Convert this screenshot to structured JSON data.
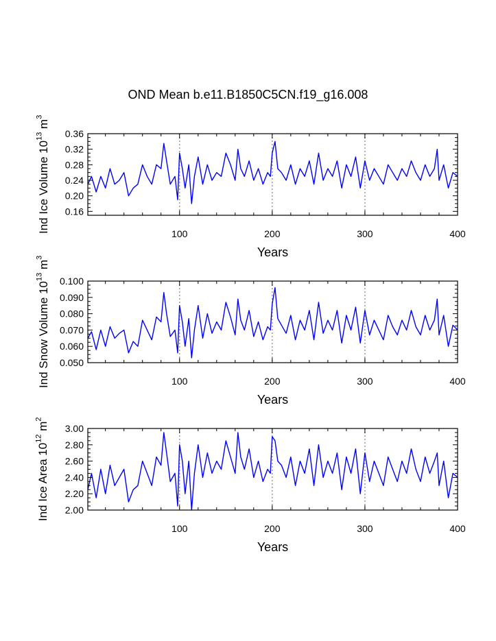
{
  "title": "OND Mean b.e11.B1850C5CN.f19_g16.008",
  "colors": {
    "series": "#0000ff",
    "axes": "#000000",
    "refline": "#999999"
  },
  "chart_data": [
    {
      "type": "line",
      "ylabel_main": "Ind Ice Volume 10",
      "ylabel_exp": "13",
      "ylabel_unit": " m",
      "ylabel_unit_exp": "3",
      "xlabel": "Years",
      "xlim": [
        1,
        400
      ],
      "ylim": [
        0.15,
        0.36
      ],
      "yticks": [
        0.16,
        0.2,
        0.24,
        0.28,
        0.32,
        0.36
      ],
      "ytick_labels": [
        "0.16",
        "0.20",
        "0.24",
        "0.28",
        "0.32",
        "0.36"
      ],
      "xticks": [
        100,
        200,
        300,
        400
      ],
      "xtick_labels": [
        "100",
        "200",
        "300",
        "400"
      ],
      "reference_lines_x": [
        100,
        200,
        300
      ],
      "series": [
        {
          "name": "Ind Ice Volume",
          "x": [
            1,
            5,
            10,
            15,
            20,
            25,
            30,
            35,
            40,
            45,
            50,
            55,
            60,
            65,
            70,
            75,
            80,
            83,
            86,
            90,
            95,
            98,
            100,
            103,
            106,
            110,
            113,
            116,
            120,
            125,
            130,
            135,
            140,
            145,
            150,
            155,
            160,
            163,
            166,
            170,
            175,
            180,
            185,
            190,
            195,
            198,
            200,
            203,
            206,
            210,
            215,
            220,
            225,
            230,
            235,
            240,
            245,
            250,
            255,
            260,
            265,
            270,
            275,
            280,
            285,
            290,
            295,
            300,
            305,
            310,
            315,
            320,
            325,
            330,
            335,
            340,
            345,
            350,
            355,
            360,
            365,
            370,
            375,
            378,
            380,
            385,
            390,
            395,
            400
          ],
          "y": [
            0.23,
            0.25,
            0.21,
            0.25,
            0.22,
            0.27,
            0.23,
            0.24,
            0.26,
            0.2,
            0.22,
            0.23,
            0.28,
            0.25,
            0.23,
            0.28,
            0.27,
            0.335,
            0.29,
            0.23,
            0.25,
            0.19,
            0.31,
            0.27,
            0.22,
            0.28,
            0.18,
            0.25,
            0.3,
            0.23,
            0.28,
            0.24,
            0.26,
            0.25,
            0.31,
            0.28,
            0.24,
            0.32,
            0.27,
            0.25,
            0.29,
            0.24,
            0.27,
            0.23,
            0.26,
            0.25,
            0.31,
            0.34,
            0.27,
            0.26,
            0.24,
            0.28,
            0.23,
            0.27,
            0.25,
            0.29,
            0.23,
            0.31,
            0.24,
            0.27,
            0.25,
            0.29,
            0.22,
            0.28,
            0.25,
            0.3,
            0.22,
            0.29,
            0.24,
            0.27,
            0.25,
            0.23,
            0.28,
            0.26,
            0.24,
            0.27,
            0.25,
            0.29,
            0.26,
            0.24,
            0.28,
            0.25,
            0.27,
            0.32,
            0.24,
            0.28,
            0.22,
            0.26,
            0.25
          ]
        }
      ]
    },
    {
      "type": "line",
      "ylabel_main": "Ind Snow Volume 10",
      "ylabel_exp": "13",
      "ylabel_unit": " m",
      "ylabel_unit_exp": "3",
      "xlabel": "Years",
      "xlim": [
        1,
        400
      ],
      "ylim": [
        0.05,
        0.1
      ],
      "yticks": [
        0.05,
        0.06,
        0.07,
        0.08,
        0.09,
        0.1
      ],
      "ytick_labels": [
        "0.050",
        "0.060",
        "0.070",
        "0.080",
        "0.090",
        "0.100"
      ],
      "xticks": [
        100,
        200,
        300,
        400
      ],
      "xtick_labels": [
        "100",
        "200",
        "300",
        "400"
      ],
      "reference_lines_x": [
        100,
        200,
        300
      ],
      "series": [
        {
          "name": "Ind Snow Volume",
          "x": [
            1,
            5,
            10,
            15,
            20,
            25,
            30,
            35,
            40,
            45,
            50,
            55,
            60,
            65,
            70,
            75,
            80,
            83,
            86,
            90,
            95,
            98,
            100,
            103,
            106,
            110,
            113,
            116,
            120,
            125,
            130,
            135,
            140,
            145,
            150,
            155,
            160,
            163,
            166,
            170,
            175,
            180,
            185,
            190,
            195,
            198,
            200,
            203,
            206,
            210,
            215,
            220,
            225,
            230,
            235,
            240,
            245,
            250,
            255,
            260,
            265,
            270,
            275,
            280,
            285,
            290,
            295,
            300,
            305,
            310,
            315,
            320,
            325,
            330,
            335,
            340,
            345,
            350,
            355,
            360,
            365,
            370,
            375,
            378,
            380,
            385,
            390,
            395,
            400
          ],
          "y": [
            0.065,
            0.069,
            0.058,
            0.07,
            0.06,
            0.072,
            0.065,
            0.068,
            0.07,
            0.056,
            0.063,
            0.06,
            0.076,
            0.07,
            0.064,
            0.078,
            0.075,
            0.093,
            0.08,
            0.066,
            0.07,
            0.056,
            0.085,
            0.075,
            0.06,
            0.077,
            0.053,
            0.07,
            0.085,
            0.065,
            0.08,
            0.068,
            0.075,
            0.07,
            0.087,
            0.078,
            0.067,
            0.089,
            0.076,
            0.07,
            0.082,
            0.066,
            0.075,
            0.064,
            0.072,
            0.07,
            0.086,
            0.096,
            0.077,
            0.073,
            0.068,
            0.079,
            0.064,
            0.076,
            0.07,
            0.082,
            0.064,
            0.087,
            0.068,
            0.076,
            0.07,
            0.082,
            0.062,
            0.079,
            0.07,
            0.084,
            0.062,
            0.082,
            0.067,
            0.076,
            0.07,
            0.064,
            0.079,
            0.072,
            0.067,
            0.076,
            0.07,
            0.082,
            0.072,
            0.067,
            0.079,
            0.07,
            0.076,
            0.089,
            0.067,
            0.079,
            0.06,
            0.073,
            0.07
          ]
        }
      ]
    },
    {
      "type": "line",
      "ylabel_main": "Ind Ice Area 10",
      "ylabel_exp": "12",
      "ylabel_unit": " m",
      "ylabel_unit_exp": "2",
      "xlabel": "Years",
      "xlim": [
        1,
        400
      ],
      "ylim": [
        2.0,
        3.0
      ],
      "yticks": [
        2.0,
        2.2,
        2.4,
        2.6,
        2.8,
        3.0
      ],
      "ytick_labels": [
        "2.00",
        "2.20",
        "2.40",
        "2.60",
        "2.80",
        "3.00"
      ],
      "xticks": [
        100,
        200,
        300,
        400
      ],
      "xtick_labels": [
        "100",
        "200",
        "300",
        "400"
      ],
      "reference_lines_x": [
        100,
        200,
        300
      ],
      "series": [
        {
          "name": "Ind Ice Area",
          "x": [
            1,
            5,
            10,
            15,
            20,
            25,
            30,
            35,
            40,
            45,
            50,
            55,
            60,
            65,
            70,
            75,
            80,
            83,
            86,
            90,
            95,
            98,
            100,
            103,
            106,
            110,
            113,
            116,
            120,
            125,
            130,
            135,
            140,
            145,
            150,
            155,
            160,
            163,
            166,
            170,
            175,
            180,
            185,
            190,
            195,
            198,
            200,
            203,
            206,
            210,
            215,
            220,
            225,
            230,
            235,
            240,
            245,
            250,
            255,
            260,
            265,
            270,
            275,
            280,
            285,
            290,
            295,
            300,
            305,
            310,
            315,
            320,
            325,
            330,
            335,
            340,
            345,
            350,
            355,
            360,
            365,
            370,
            375,
            378,
            380,
            385,
            390,
            395,
            400
          ],
          "y": [
            2.25,
            2.45,
            2.15,
            2.5,
            2.2,
            2.55,
            2.3,
            2.4,
            2.5,
            2.1,
            2.25,
            2.3,
            2.6,
            2.45,
            2.3,
            2.65,
            2.55,
            2.95,
            2.7,
            2.35,
            2.45,
            2.05,
            2.8,
            2.6,
            2.2,
            2.6,
            2.0,
            2.45,
            2.8,
            2.4,
            2.7,
            2.45,
            2.6,
            2.5,
            2.85,
            2.65,
            2.45,
            2.95,
            2.65,
            2.5,
            2.75,
            2.4,
            2.6,
            2.35,
            2.5,
            2.45,
            2.9,
            2.85,
            2.6,
            2.55,
            2.4,
            2.65,
            2.3,
            2.6,
            2.45,
            2.75,
            2.3,
            2.8,
            2.4,
            2.6,
            2.45,
            2.7,
            2.25,
            2.65,
            2.45,
            2.75,
            2.2,
            2.7,
            2.35,
            2.6,
            2.45,
            2.3,
            2.65,
            2.5,
            2.35,
            2.6,
            2.45,
            2.75,
            2.5,
            2.35,
            2.65,
            2.45,
            2.6,
            2.7,
            2.3,
            2.6,
            2.15,
            2.45,
            2.4
          ]
        }
      ]
    }
  ]
}
